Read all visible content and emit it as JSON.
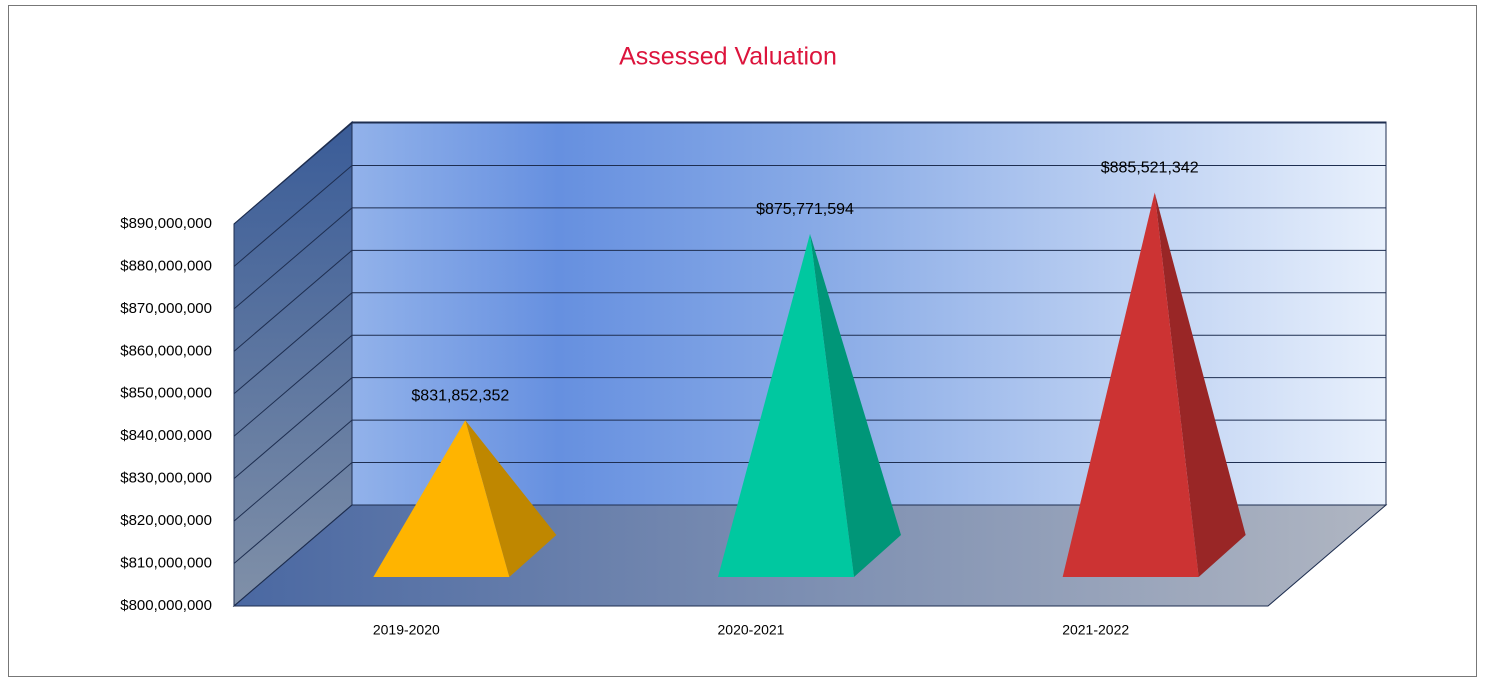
{
  "chart_data": {
    "type": "pyramid",
    "title": "Assessed Valuation",
    "categories": [
      "2019-2020",
      "2020-2021",
      "2021-2022"
    ],
    "values": [
      831852352,
      875771594,
      885521342
    ],
    "value_labels": [
      "$831,852,352",
      "$875,771,594",
      "$885,521,342"
    ],
    "colors": [
      "#ffb400",
      "#00c8a0",
      "#cc3333"
    ],
    "ylim": [
      800000000,
      890000000
    ],
    "yticks": [
      {
        "value": 800000000,
        "label": "$800,000,000"
      },
      {
        "value": 810000000,
        "label": "$810,000,000"
      },
      {
        "value": 820000000,
        "label": "$820,000,000"
      },
      {
        "value": 830000000,
        "label": "$830,000,000"
      },
      {
        "value": 840000000,
        "label": "$840,000,000"
      },
      {
        "value": 850000000,
        "label": "$850,000,000"
      },
      {
        "value": 860000000,
        "label": "$860,000,000"
      },
      {
        "value": 870000000,
        "label": "$870,000,000"
      },
      {
        "value": 880000000,
        "label": "$880,000,000"
      },
      {
        "value": 890000000,
        "label": "$890,000,000"
      }
    ],
    "grid": true
  }
}
